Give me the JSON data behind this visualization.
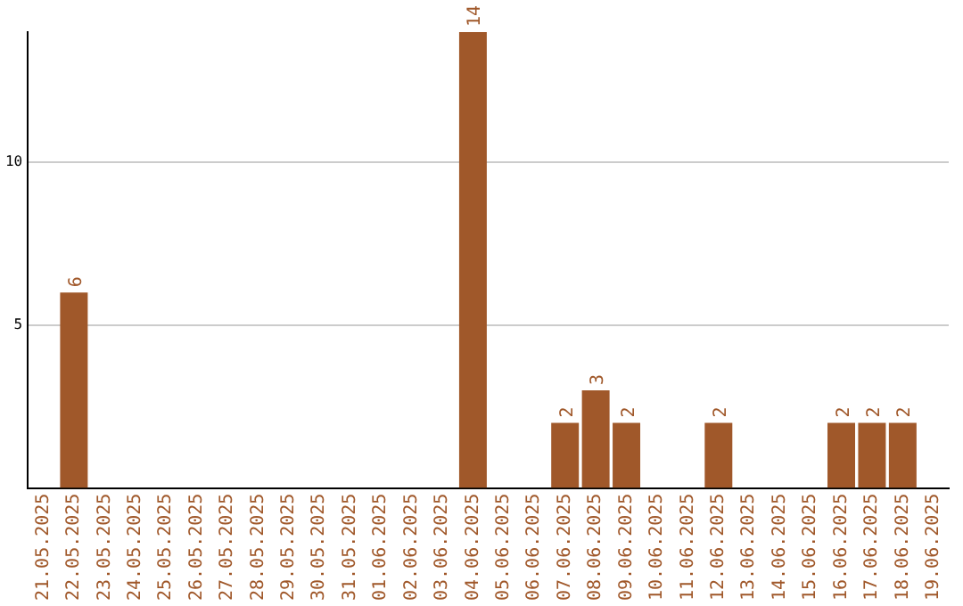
{
  "chart_data": {
    "type": "bar",
    "categories": [
      "21.05.2025",
      "22.05.2025",
      "23.05.2025",
      "24.05.2025",
      "25.05.2025",
      "26.05.2025",
      "27.05.2025",
      "28.05.2025",
      "29.05.2025",
      "30.05.2025",
      "31.05.2025",
      "01.06.2025",
      "02.06.2025",
      "03.06.2025",
      "04.06.2025",
      "05.06.2025",
      "06.06.2025",
      "07.06.2025",
      "08.06.2025",
      "09.06.2025",
      "10.06.2025",
      "11.06.2025",
      "12.06.2025",
      "13.06.2025",
      "14.06.2025",
      "15.06.2025",
      "16.06.2025",
      "17.06.2025",
      "18.06.2025",
      "19.06.2025"
    ],
    "values": [
      0,
      6,
      0,
      0,
      0,
      0,
      0,
      0,
      0,
      0,
      0,
      0,
      0,
      0,
      14,
      0,
      0,
      2,
      3,
      2,
      0,
      0,
      2,
      0,
      0,
      0,
      2,
      2,
      2,
      0
    ],
    "value_labels": [
      null,
      "6",
      null,
      null,
      null,
      null,
      null,
      null,
      null,
      null,
      null,
      null,
      null,
      null,
      "14",
      null,
      null,
      "2",
      "3",
      "2",
      null,
      null,
      "2",
      null,
      null,
      null,
      "2",
      "2",
      "2",
      null
    ],
    "color": "#a0582a",
    "ylim": [
      0,
      14
    ],
    "yticks": [
      5,
      10
    ],
    "grid": "y",
    "legend": false
  }
}
